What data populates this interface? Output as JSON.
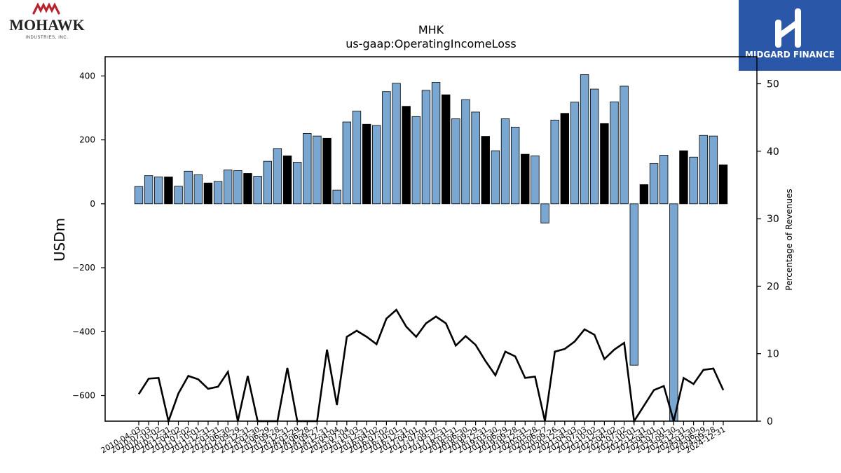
{
  "brand": {
    "company_logo_word": "MOHAWK",
    "company_logo_sub": "INDUSTRIES, INC.",
    "company_logo_color": "#b8232f",
    "publisher_name": "MIDGARD FINANCE",
    "publisher_bg": "#2a57a7"
  },
  "chart_data": {
    "type": "bar",
    "title": "MHK",
    "subtitle": "us-gaap:OperatingIncomeLoss",
    "ylabel": "USDm",
    "y2label": "Percentage of Revenues",
    "ylim": [
      -680,
      460
    ],
    "y2lim": [
      0,
      54
    ],
    "yticks": [
      -600,
      -400,
      -200,
      0,
      200,
      400
    ],
    "y2ticks": [
      0,
      10,
      20,
      30,
      40,
      50
    ],
    "colors": {
      "quarter": "#7aa7d1",
      "annual": "#000000",
      "line": "#000000"
    },
    "categories": [
      "2010-04-03",
      "2010-07-03",
      "2010-10-02",
      "2010-12-31",
      "2011-04-02",
      "2011-07-02",
      "2011-10-01",
      "2011-12-31",
      "2012-03-31",
      "2012-06-30",
      "2012-09-29",
      "2012-12-31",
      "2013-03-30",
      "2013-06-29",
      "2013-09-28",
      "2013-12-31",
      "2014-03-29",
      "2014-06-28",
      "2014-09-27",
      "2014-12-31",
      "2015-04-04",
      "2015-07-04",
      "2015-10-03",
      "2015-12-31",
      "2016-04-02",
      "2016-07-02",
      "2016-10-01",
      "2016-12-31",
      "2017-04-01",
      "2017-07-01",
      "2017-09-30",
      "2017-12-31",
      "2018-03-31",
      "2018-06-30",
      "2018-09-29",
      "2018-12-31",
      "2019-03-30",
      "2019-06-29",
      "2019-09-28",
      "2019-12-31",
      "2020-03-28",
      "2020-06-27",
      "2020-09-26",
      "2020-12-31",
      "2021-04-03",
      "2021-07-03",
      "2021-10-02",
      "2021-12-31",
      "2022-04-02",
      "2022-07-02",
      "2022-10-01",
      "2022-12-31",
      "2023-04-01",
      "2023-07-01",
      "2023-09-30",
      "2023-12-31",
      "2024-03-30",
      "2024-06-29",
      "2024-09-28",
      "2024-12-31"
    ],
    "values": [
      54,
      88,
      84,
      84,
      55,
      102,
      91,
      65,
      70,
      106,
      104,
      95,
      86,
      133,
      173,
      150,
      130,
      220,
      212,
      205,
      43,
      256,
      290,
      249,
      245,
      351,
      377,
      305,
      273,
      355,
      380,
      341,
      266,
      326,
      287,
      211,
      166,
      266,
      240,
      155,
      150,
      -60,
      262,
      283,
      318,
      404,
      359,
      251,
      319,
      368,
      -505,
      60,
      126,
      152,
      -680,
      166,
      146,
      214,
      212,
      122
    ],
    "annual": [
      false,
      false,
      false,
      true,
      false,
      false,
      false,
      true,
      false,
      false,
      false,
      true,
      false,
      false,
      false,
      true,
      false,
      false,
      false,
      true,
      false,
      false,
      false,
      true,
      false,
      false,
      false,
      true,
      false,
      false,
      false,
      true,
      false,
      false,
      false,
      true,
      false,
      false,
      false,
      true,
      false,
      false,
      false,
      true,
      false,
      false,
      false,
      true,
      false,
      false,
      false,
      true,
      false,
      false,
      false,
      true,
      false,
      false,
      false,
      true
    ],
    "pct_of_revenues": [
      4,
      6.3,
      6.4,
      0,
      4.1,
      6.7,
      6.2,
      4.8,
      5.1,
      7.3,
      0,
      6.7,
      0,
      0,
      0,
      7.9,
      0,
      0,
      0,
      10.6,
      2.4,
      12.5,
      13.4,
      12.5,
      11.4,
      15.2,
      16.5,
      14,
      12.5,
      14.5,
      15.5,
      14.5,
      11.2,
      12.6,
      11.3,
      8.9,
      6.8,
      10.3,
      9.6,
      6.4,
      6.6,
      0,
      10.3,
      10.7,
      11.8,
      13.6,
      12.8,
      9.2,
      10.6,
      11.6,
      0,
      2.3,
      4.6,
      5.2,
      0,
      6.4,
      5.5,
      7.6,
      7.8,
      4.6
    ]
  }
}
